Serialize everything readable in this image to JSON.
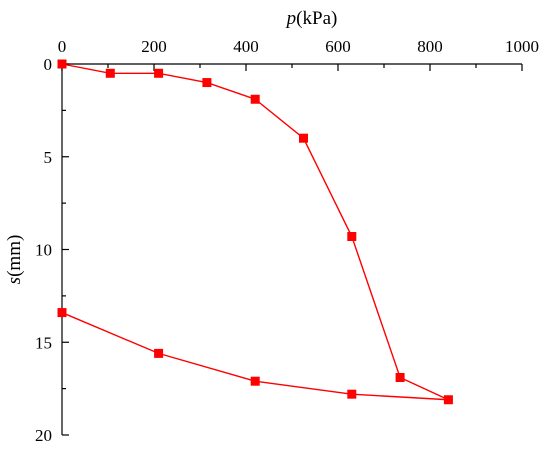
{
  "chart_data": {
    "type": "line",
    "xlabel_var": "p",
    "xlabel_unit": "(kPa)",
    "ylabel_var": "s",
    "ylabel_unit": "(mm)",
    "xlim": [
      0,
      1000
    ],
    "ylim": [
      0,
      20
    ],
    "x_axis_position": "top",
    "y_inverted": true,
    "x_ticks": [
      0,
      200,
      400,
      600,
      800,
      1000
    ],
    "y_ticks": [
      0,
      5,
      10,
      15,
      20
    ],
    "grid": false,
    "series_color": "#ff0000",
    "marker": "square",
    "series": [
      {
        "x": [
          0,
          105,
          210,
          315,
          420,
          525,
          630,
          735,
          840,
          630,
          420,
          210,
          0
        ],
        "values": [
          0,
          0.5,
          0.5,
          1.0,
          1.9,
          4.0,
          9.3,
          16.9,
          18.1,
          17.8,
          17.1,
          15.6,
          13.4
        ]
      }
    ]
  }
}
